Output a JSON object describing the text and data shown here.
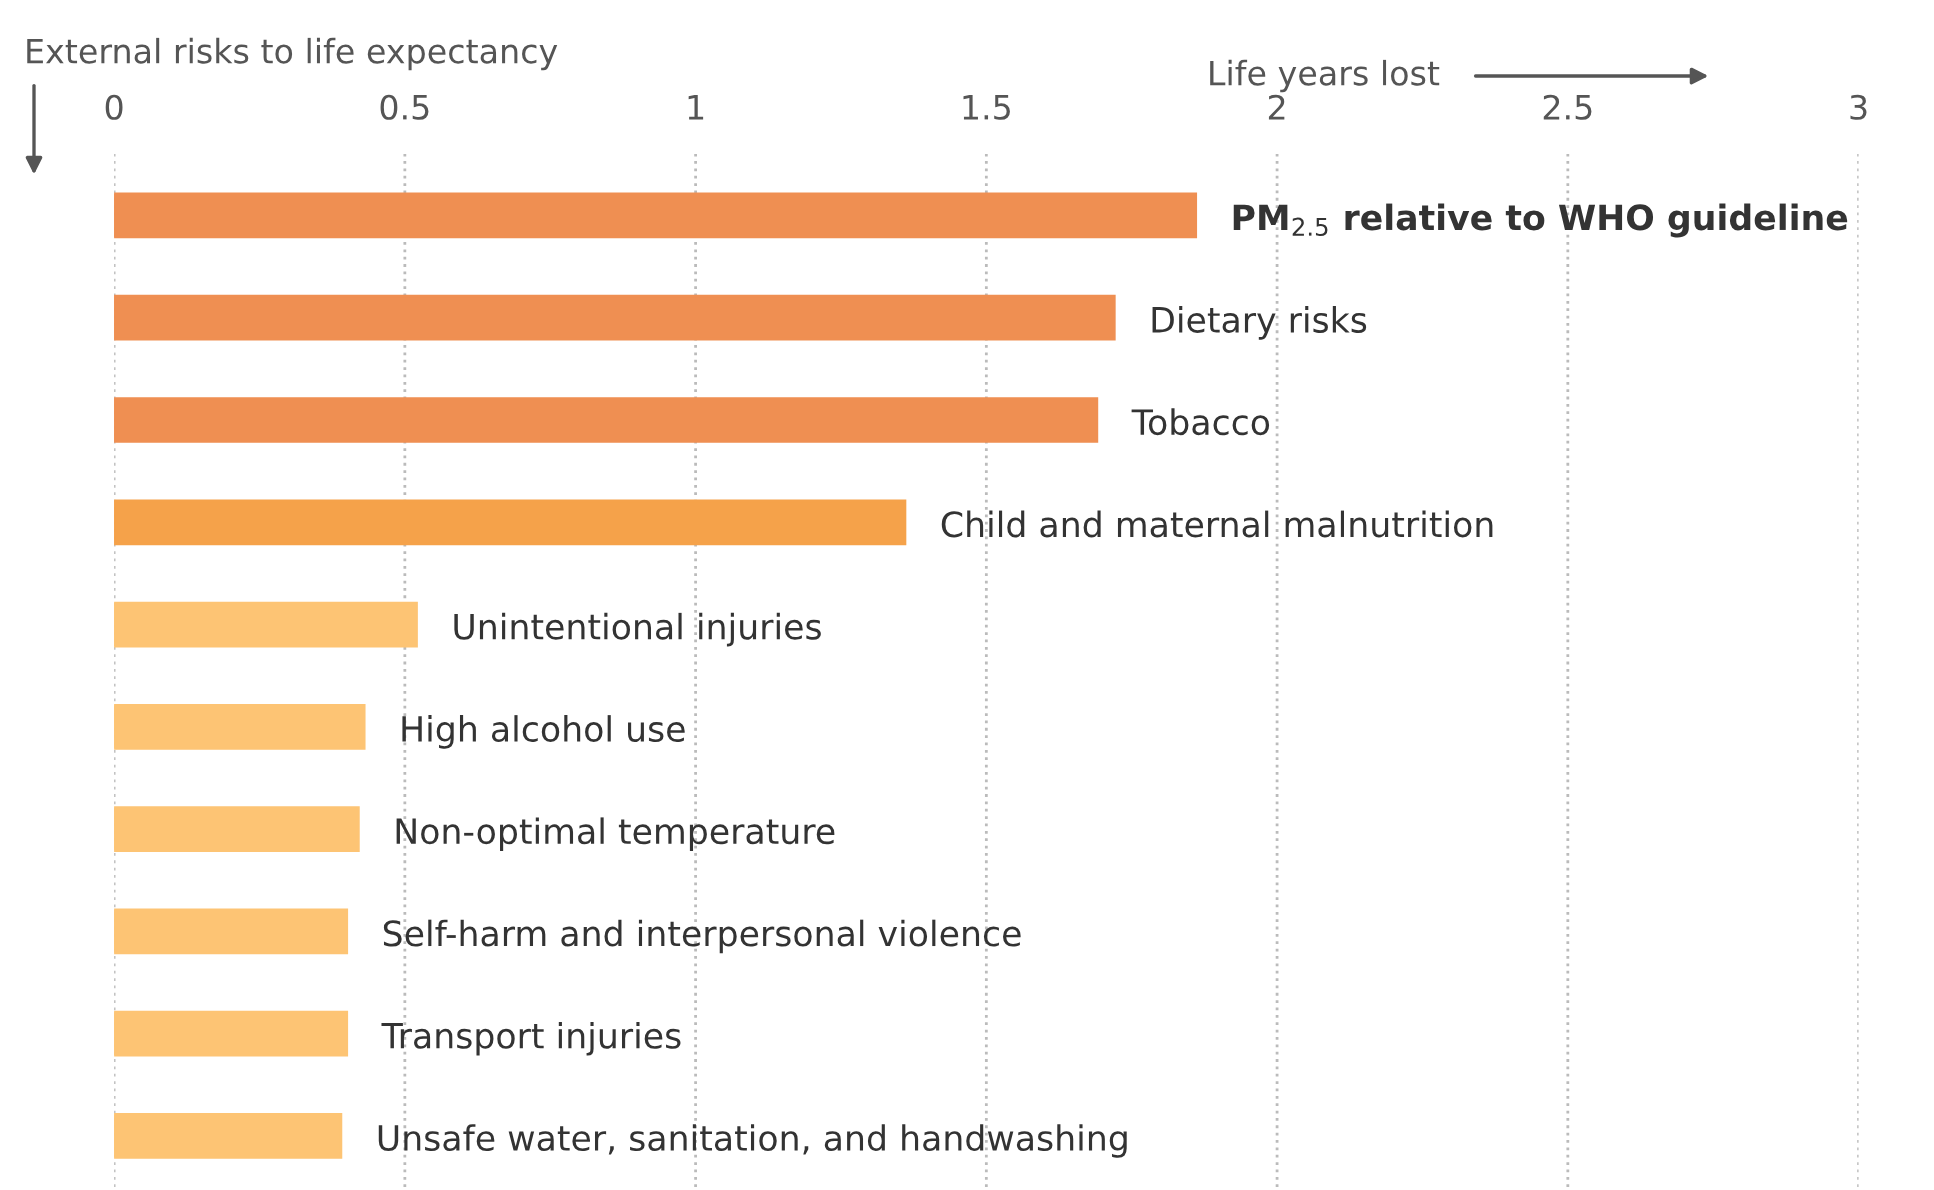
{
  "chart_data": {
    "type": "bar",
    "orientation": "horizontal",
    "ylabel": "External risks to life expectancy",
    "xlabel": "Life years lost",
    "categories": [
      "PM$_{2.5}$ relative to WHO guideline",
      "Dietary risks",
      "Tobacco",
      "Child and maternal malnutrition",
      "Unintentional injuries",
      "High alcohol use",
      "Non-optimal temperature",
      "Self-harm and interpersonal violence",
      "Transport injuries",
      "Unsafe water, sanitation, and handwashing"
    ],
    "values": [
      1.86,
      1.72,
      1.69,
      1.36,
      0.52,
      0.43,
      0.42,
      0.4,
      0.4,
      0.39
    ],
    "colors": [
      "#ef8f52",
      "#ef8f52",
      "#ef8f52",
      "#f5a24a",
      "#fdc474",
      "#fdc474",
      "#fdc474",
      "#fdc474",
      "#fdc474",
      "#fdc474"
    ],
    "xlim": [
      0,
      3
    ],
    "xticks": [
      0,
      0.5,
      1,
      1.5,
      2,
      2.5,
      3
    ],
    "grid": "x"
  }
}
